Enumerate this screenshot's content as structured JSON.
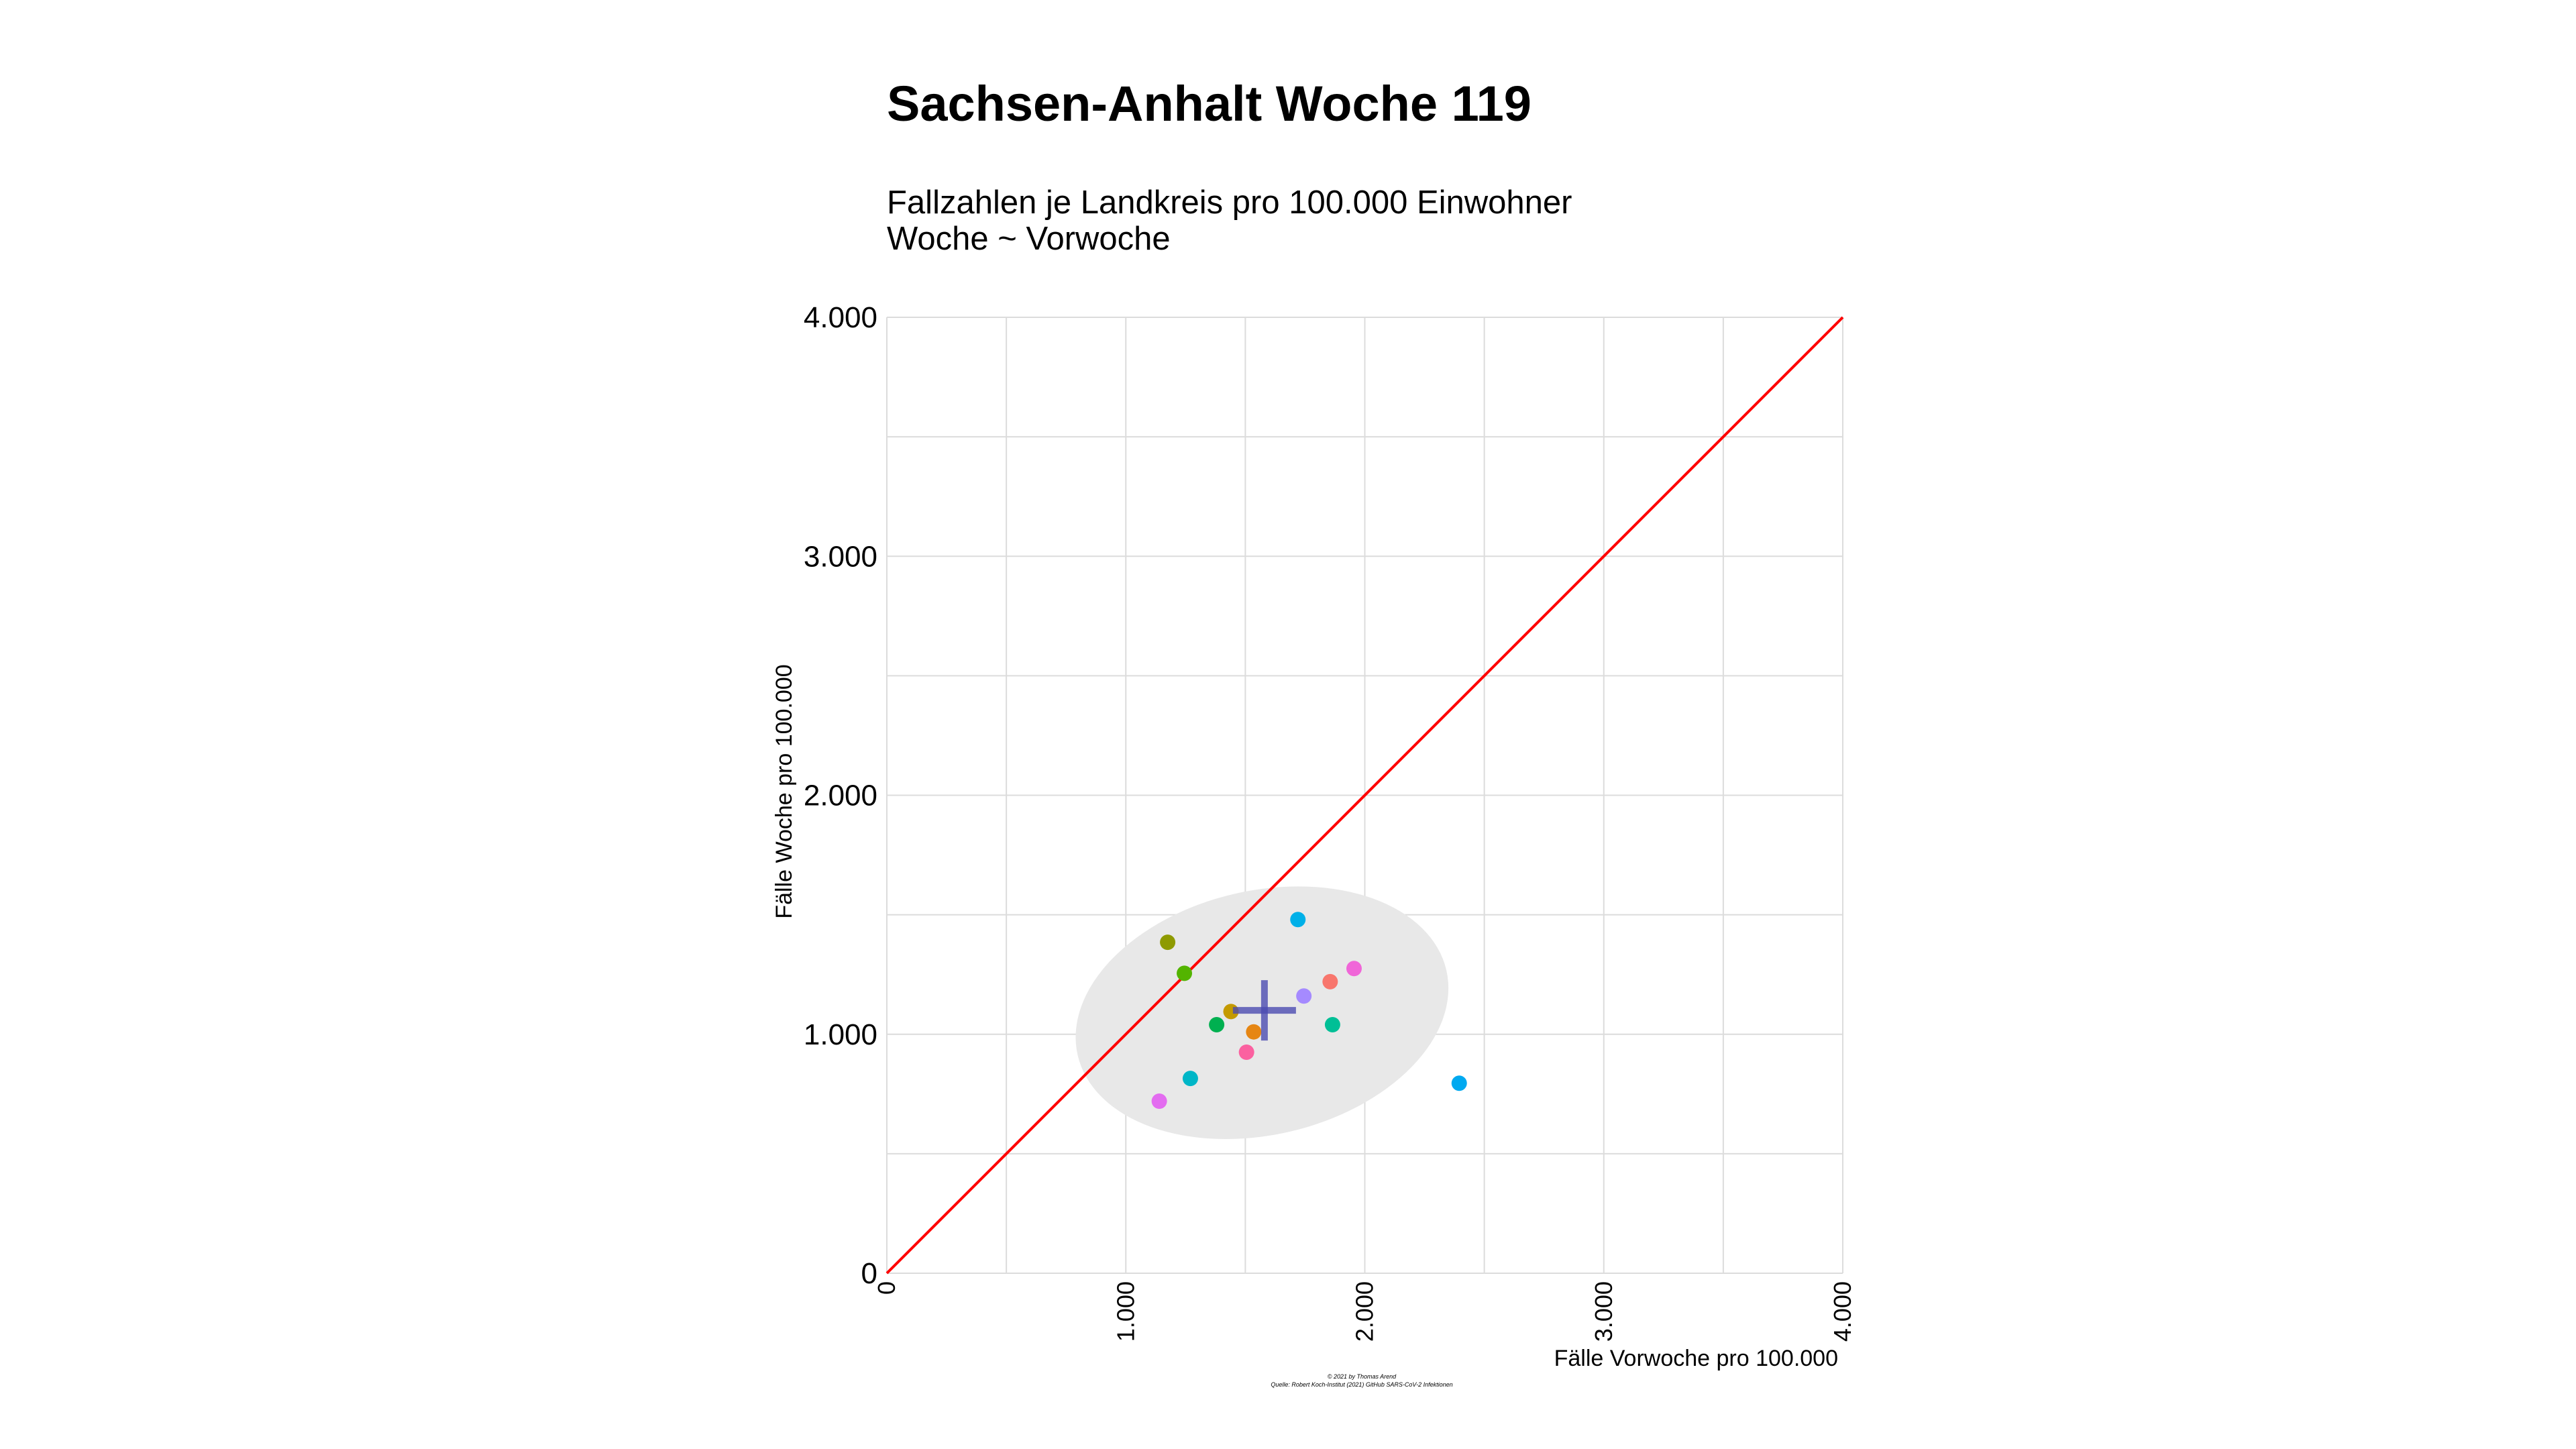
{
  "chart_data": {
    "type": "scatter",
    "title": "Sachsen-Anhalt Woche 119",
    "subtitle_lines": [
      "Fallzahlen je Landkreis pro 100.000 Einwohner",
      "Woche ~ Vorwoche"
    ],
    "xlabel": "Fälle Vorwoche pro 100.000",
    "ylabel": "Fälle Woche pro 100.000",
    "xlim": [
      0,
      4000
    ],
    "ylim": [
      0,
      4000
    ],
    "grid": true,
    "x_ticks": [
      {
        "value": 0,
        "label": "0"
      },
      {
        "value": 1000,
        "label": "1.000"
      },
      {
        "value": 2000,
        "label": "2.000"
      },
      {
        "value": 3000,
        "label": "3.000"
      },
      {
        "value": 4000,
        "label": "4.000"
      }
    ],
    "y_ticks": [
      {
        "value": 0,
        "label": "0"
      },
      {
        "value": 1000,
        "label": "1.000"
      },
      {
        "value": 2000,
        "label": "2.000"
      },
      {
        "value": 3000,
        "label": "3.000"
      },
      {
        "value": 4000,
        "label": "4.000"
      }
    ],
    "reference_line": {
      "type": "identity",
      "x": [
        0,
        4000
      ],
      "y": [
        0,
        4000
      ],
      "color": "#ff0000"
    },
    "mean": {
      "x": 1580,
      "y": 1100,
      "color": "#4b4bb0"
    },
    "ellipse": {
      "center_x": 1570,
      "center_y": 1090,
      "color": "#e8e8e8"
    },
    "points": [
      {
        "x": 1720,
        "y": 1480,
        "color": "#00b0e8"
      },
      {
        "x": 1175,
        "y": 1385,
        "color": "#8e9a00"
      },
      {
        "x": 1245,
        "y": 1255,
        "color": "#53b400"
      },
      {
        "x": 1955,
        "y": 1275,
        "color": "#f066d8"
      },
      {
        "x": 1855,
        "y": 1220,
        "color": "#f8766d"
      },
      {
        "x": 1745,
        "y": 1160,
        "color": "#a58aff"
      },
      {
        "x": 1440,
        "y": 1095,
        "color": "#c49a00"
      },
      {
        "x": 1380,
        "y": 1040,
        "color": "#00b050"
      },
      {
        "x": 1865,
        "y": 1040,
        "color": "#00bf96"
      },
      {
        "x": 1535,
        "y": 1010,
        "color": "#e68613"
      },
      {
        "x": 1505,
        "y": 925,
        "color": "#fb61a0"
      },
      {
        "x": 1270,
        "y": 815,
        "color": "#00b6c7"
      },
      {
        "x": 2395,
        "y": 795,
        "color": "#00a9f0"
      },
      {
        "x": 1140,
        "y": 720,
        "color": "#e36cf0"
      }
    ],
    "caption_lines": [
      "© 2021 by Thomas Arend",
      "Quelle: Robert Koch-Institut (2021) GitHub SARS-CoV-2 Infektionen"
    ]
  },
  "colors": {
    "grid": "#dcdcdc",
    "identity_line": "#ff0000",
    "ellipse_fill": "#e8e8e8",
    "mean_cross": "#4b4bb0"
  }
}
